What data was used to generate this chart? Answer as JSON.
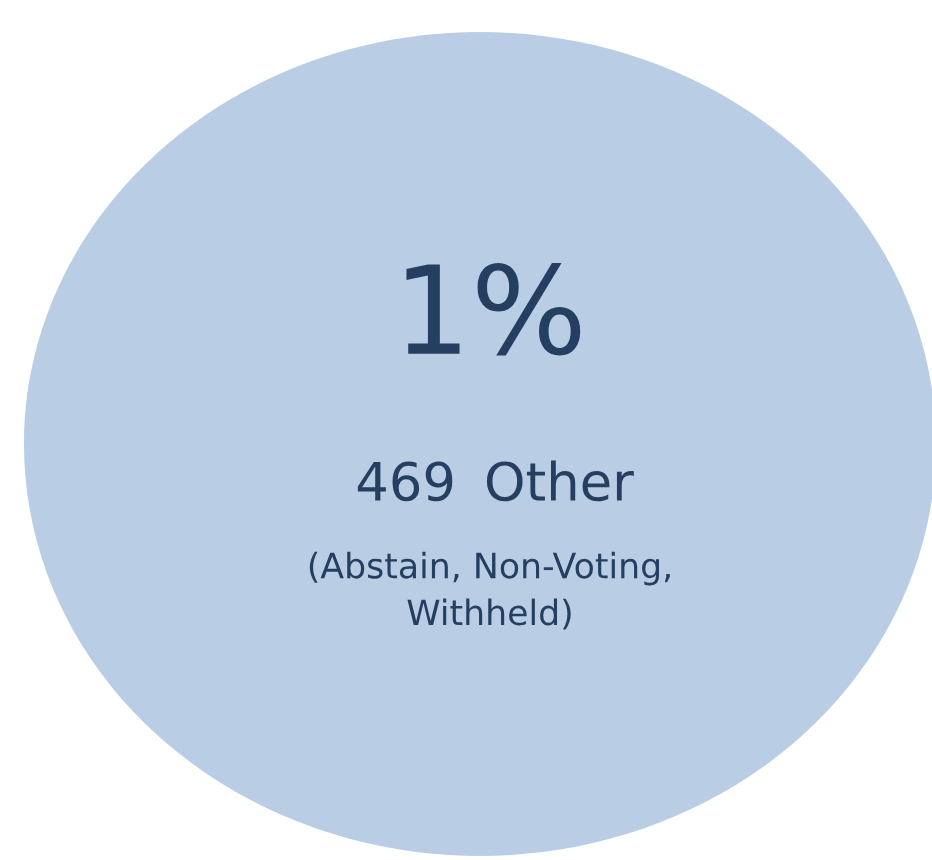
{
  "chart_data": {
    "type": "other",
    "color": "#b9cde5",
    "title": "1%",
    "categories": [
      "Other"
    ],
    "values": [
      469
    ],
    "data_labels": true,
    "annotations": [
      "(Abstain, Non-Voting,\nWithheld)"
    ]
  }
}
